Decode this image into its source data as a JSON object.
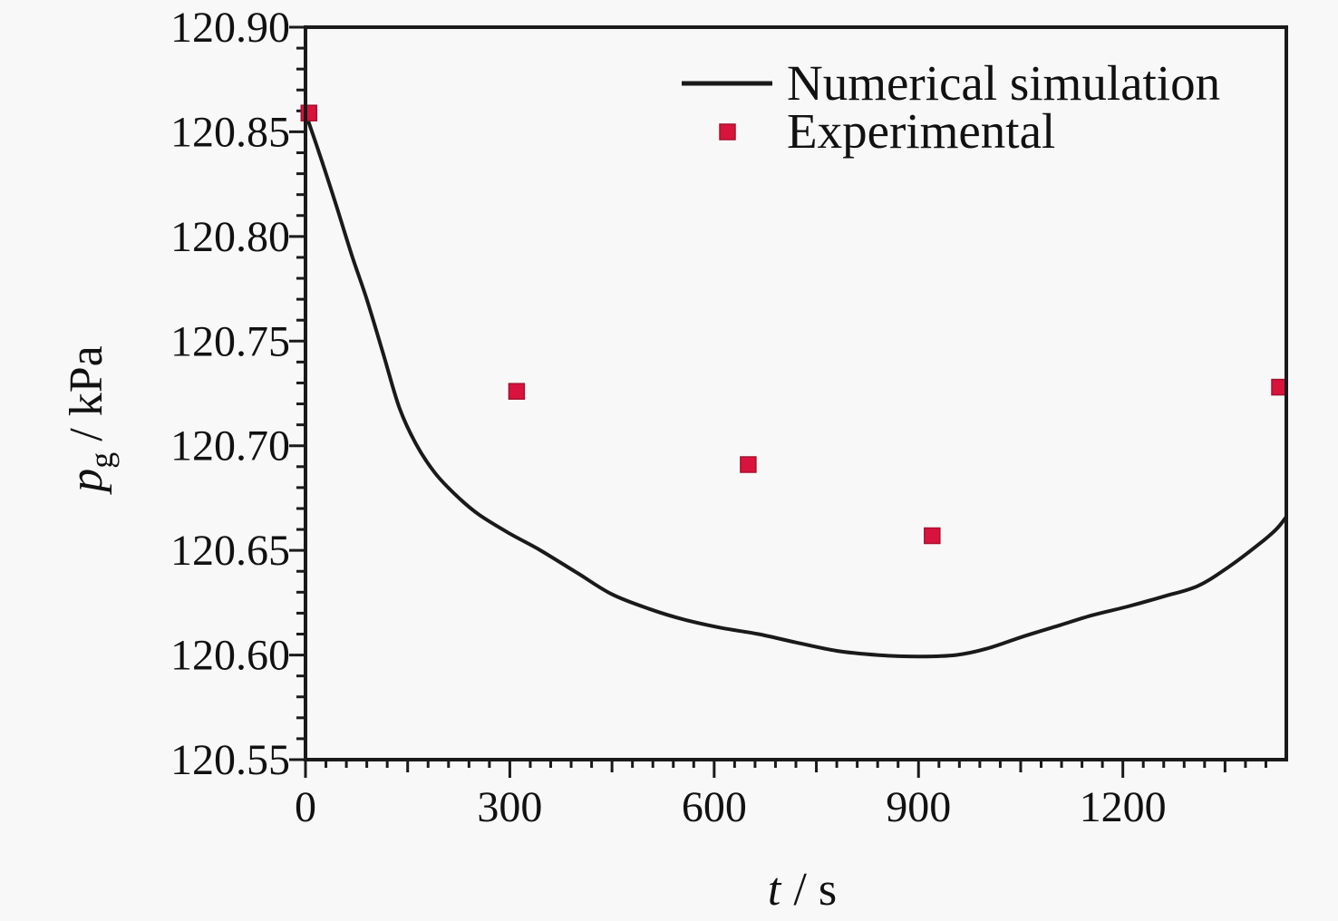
{
  "chart_data": {
    "type": "line",
    "title": "",
    "xlabel": "t / s",
    "xlabel_parts": {
      "symbol": "t",
      "unit": "/ s"
    },
    "ylabel": "pg / kPa",
    "ylabel_parts": {
      "symbol": "p",
      "subscript": "g",
      "unit": "/ kPa"
    },
    "xlim": [
      0,
      1440
    ],
    "ylim": [
      120.55,
      120.9
    ],
    "grid": false,
    "legend_position": "top-right-inside",
    "x_major_ticks": [
      0,
      300,
      600,
      900,
      1200
    ],
    "x_major_tick_labels": [
      "0",
      "300",
      "600",
      "900",
      "1200"
    ],
    "x_medium_ticks": [
      150,
      450,
      750,
      1050,
      1350
    ],
    "x_minor_step": 30,
    "y_major_ticks": [
      120.55,
      120.6,
      120.65,
      120.7,
      120.75,
      120.8,
      120.85,
      120.9
    ],
    "y_major_tick_labels": [
      "120.55",
      "120.60",
      "120.65",
      "120.70",
      "120.75",
      "120.80",
      "120.85",
      "120.90"
    ],
    "y_minor_step": 0.01,
    "colors": {
      "axis": "#1a1a1a",
      "background": "#f8f8f8",
      "line_series": "#1a1a1a",
      "scatter_series": "#d8143c",
      "scatter_edge": "#a8102e"
    },
    "series": [
      {
        "name": "Numerical simulation",
        "type": "line",
        "color": "#1a1a1a",
        "points": [
          [
            0,
            120.859
          ],
          [
            20,
            120.84
          ],
          [
            45,
            120.815
          ],
          [
            68,
            120.791
          ],
          [
            90,
            120.77
          ],
          [
            115,
            120.743
          ],
          [
            138,
            120.718
          ],
          [
            162,
            120.701
          ],
          [
            190,
            120.687
          ],
          [
            222,
            120.676
          ],
          [
            255,
            120.667
          ],
          [
            300,
            120.658
          ],
          [
            345,
            120.65
          ],
          [
            400,
            120.639
          ],
          [
            450,
            120.629
          ],
          [
            505,
            120.622
          ],
          [
            555,
            120.617
          ],
          [
            610,
            120.613
          ],
          [
            665,
            120.61
          ],
          [
            720,
            120.606
          ],
          [
            780,
            120.602
          ],
          [
            840,
            120.6
          ],
          [
            900,
            120.5993
          ],
          [
            955,
            120.6
          ],
          [
            1000,
            120.603
          ],
          [
            1055,
            120.609
          ],
          [
            1105,
            120.614
          ],
          [
            1155,
            120.619
          ],
          [
            1205,
            120.623
          ],
          [
            1260,
            120.628
          ],
          [
            1310,
            120.633
          ],
          [
            1355,
            120.642
          ],
          [
            1400,
            120.653
          ],
          [
            1425,
            120.66
          ],
          [
            1440,
            120.666
          ]
        ]
      },
      {
        "name": "Experimental",
        "type": "scatter",
        "marker": "square",
        "color": "#d8143c",
        "points": [
          [
            5,
            120.859
          ],
          [
            310,
            120.726
          ],
          [
            650,
            120.691
          ],
          [
            920,
            120.657
          ],
          [
            1430,
            120.728
          ]
        ]
      }
    ]
  }
}
